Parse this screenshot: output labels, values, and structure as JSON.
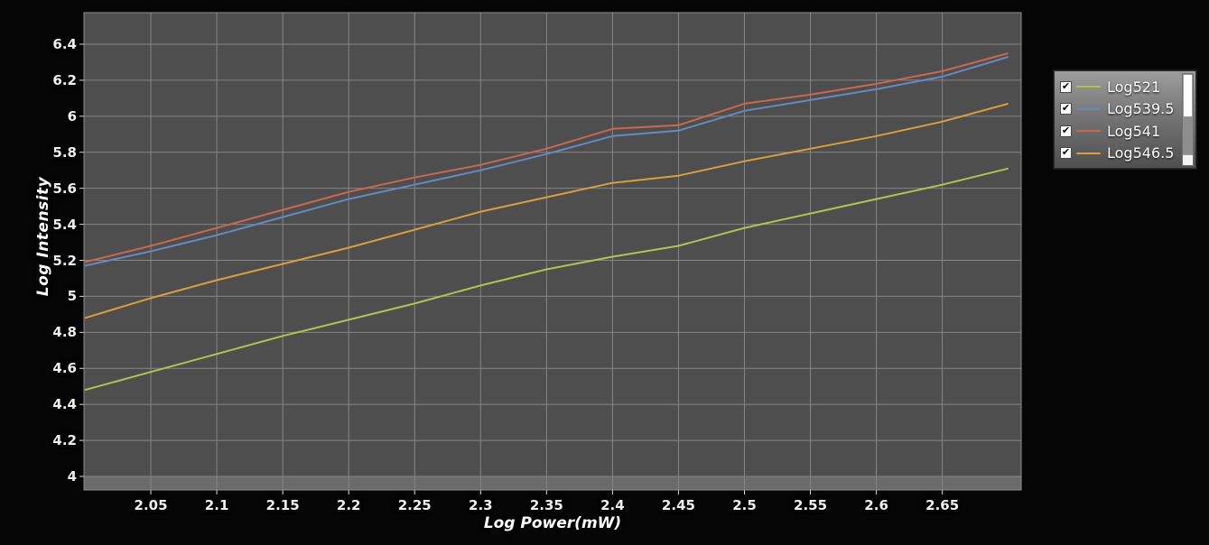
{
  "chart_data": {
    "type": "line",
    "title": "",
    "xlabel": "Log Power(mW)",
    "ylabel": "Log Intensity",
    "xlim": [
      2.0,
      2.705
    ],
    "ylim": [
      4.0,
      6.4
    ],
    "grid": true,
    "legend_position": "right",
    "x_ticks": [
      "2.05",
      "2.1",
      "2.15",
      "2.2",
      "2.25",
      "2.3",
      "2.35",
      "2.4",
      "2.45",
      "2.5",
      "2.55",
      "2.6",
      "2.65"
    ],
    "y_ticks": [
      "6.4",
      "6.2",
      "6",
      "5.8",
      "5.6",
      "5.4",
      "5.2",
      "5",
      "4.8",
      "4.6",
      "4.4",
      "4.2",
      "4"
    ],
    "x": [
      2.0,
      2.05,
      2.1,
      2.15,
      2.2,
      2.25,
      2.3,
      2.35,
      2.4,
      2.45,
      2.5,
      2.55,
      2.6,
      2.65,
      2.7
    ],
    "series": [
      {
        "name": "Log521",
        "color": "#b3c24f",
        "checked": true,
        "values": [
          4.48,
          4.58,
          4.68,
          4.78,
          4.87,
          4.96,
          5.06,
          5.15,
          5.22,
          5.28,
          5.38,
          5.46,
          5.54,
          5.62,
          5.71
        ]
      },
      {
        "name": "Log539.5",
        "color": "#6689bf",
        "checked": true,
        "values": [
          5.17,
          5.25,
          5.34,
          5.44,
          5.54,
          5.62,
          5.7,
          5.79,
          5.89,
          5.92,
          6.03,
          6.09,
          6.15,
          6.22,
          6.33
        ]
      },
      {
        "name": "Log541",
        "color": "#c8684e",
        "checked": true,
        "values": [
          5.19,
          5.28,
          5.38,
          5.48,
          5.58,
          5.66,
          5.73,
          5.82,
          5.93,
          5.95,
          6.07,
          6.12,
          6.18,
          6.25,
          6.35
        ]
      },
      {
        "name": "Log546.5",
        "color": "#d99e3d",
        "checked": true,
        "values": [
          4.88,
          4.99,
          5.09,
          5.18,
          5.27,
          5.37,
          5.47,
          5.55,
          5.63,
          5.67,
          5.75,
          5.82,
          5.89,
          5.97,
          6.07
        ]
      }
    ]
  },
  "legend": {
    "checkbox_glyph": "✔"
  },
  "colors": {
    "background": "#050505",
    "plot_bg": "#4e4e4e",
    "plot_border": "#8f8f8f",
    "grid": "#868686",
    "axis_band": "#6b6b6b",
    "tick_mark": "#d9d9d9",
    "tick_text": "#efefef"
  }
}
